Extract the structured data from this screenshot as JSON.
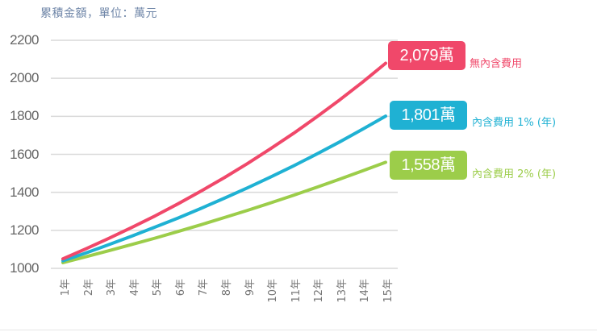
{
  "chart_data": {
    "type": "line",
    "title": "累積金額，單位：萬元",
    "xlabel": "",
    "ylabel": "",
    "ylim": [
      1000,
      2200
    ],
    "yticks": [
      1000,
      1200,
      1400,
      1600,
      1800,
      2000,
      2200
    ],
    "grid": true,
    "categories": [
      "1年",
      "2年",
      "3年",
      "4年",
      "5年",
      "6年",
      "7年",
      "8年",
      "9年",
      "10年",
      "11年",
      "12年",
      "13年",
      "14年",
      "15年"
    ],
    "series": [
      {
        "name": "無內含費用",
        "color": "#f0486a",
        "end_label": "2,079萬",
        "values": [
          1050,
          1103,
          1158,
          1216,
          1276,
          1340,
          1407,
          1477,
          1551,
          1629,
          1710,
          1796,
          1886,
          1980,
          2079
        ]
      },
      {
        "name": "內含費用 1% (年)",
        "color": "#1fb1d3",
        "end_label": "1,801萬",
        "values": [
          1040,
          1081,
          1125,
          1170,
          1217,
          1265,
          1316,
          1369,
          1423,
          1480,
          1539,
          1601,
          1665,
          1732,
          1801
        ]
      },
      {
        "name": "內含費用 2% (年)",
        "color": "#9ccd4a",
        "end_label": "1,558萬",
        "values": [
          1030,
          1061,
          1093,
          1126,
          1159,
          1194,
          1230,
          1267,
          1305,
          1344,
          1384,
          1426,
          1469,
          1513,
          1558
        ]
      }
    ]
  },
  "header": {
    "title": "累積金額，單位：萬元"
  },
  "yaxis": {
    "ticks": [
      "2200",
      "2000",
      "1800",
      "1600",
      "1400",
      "1200",
      "1000"
    ]
  },
  "xaxis": {
    "ticks": [
      "1年",
      "2年",
      "3年",
      "4年",
      "5年",
      "6年",
      "7年",
      "8年",
      "9年",
      "10年",
      "11年",
      "12年",
      "13年",
      "14年",
      "15年"
    ]
  },
  "annotations": {
    "red": {
      "badge": "2,079萬",
      "label": "無內含費用",
      "color": "#f0486a"
    },
    "blue": {
      "badge": "1,801萬",
      "label": "內含費用 1% (年)",
      "color": "#1fb1d3"
    },
    "green": {
      "badge": "1,558萬",
      "label": "內含費用 2% (年)",
      "color": "#9ccd4a"
    }
  }
}
